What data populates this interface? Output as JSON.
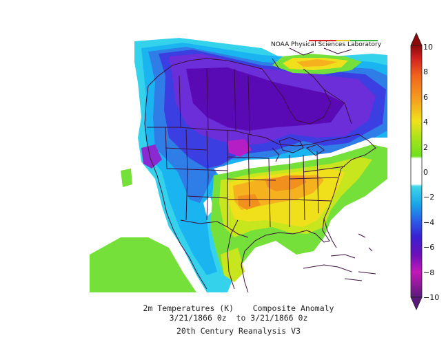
{
  "credit": "NOAA Physical Sciences Laboratory",
  "caption": {
    "line1": "2m Temperatures (K)    Composite Anomaly",
    "line2": "3/21/1866 0z  to 3/21/1866 0z",
    "line3": "20th Century Reanalysis V3"
  },
  "colorbar": {
    "ticks": [
      "10",
      "8",
      "6",
      "4",
      "2",
      "0",
      "−2",
      "−4",
      "−6",
      "−8",
      "−10"
    ],
    "colors": [
      "#8b0a0a",
      "#c81e1e",
      "#ee4a1e",
      "#f77a1c",
      "#f5a21f",
      "#f3c01e",
      "#f0e21c",
      "#d2e617",
      "#9ee21a",
      "#6ee21e",
      "#ffffff",
      "#ffffff",
      "#3fd6e8",
      "#1aa6e8",
      "#2b7ae6",
      "#3a3ed8",
      "#3b12c4",
      "#6a10b8",
      "#a11fc4",
      "#c219b8",
      "#8a1a9a",
      "#5a1a7a"
    ]
  },
  "colors": {
    "deep_purple": "#5a0ab4",
    "purple": "#6b2ed8",
    "blue_violet": "#3b3ee0",
    "blue": "#2f7de6",
    "light_blue": "#1ab4f0",
    "cyan": "#35d2ec",
    "green": "#76e03a",
    "yellow_green": "#c8e61e",
    "yellow": "#f0e01c",
    "orange_yellow": "#f5b21e",
    "orange": "#f2901e",
    "magenta": "#b41ec4",
    "outline": "#3b0f3c"
  }
}
